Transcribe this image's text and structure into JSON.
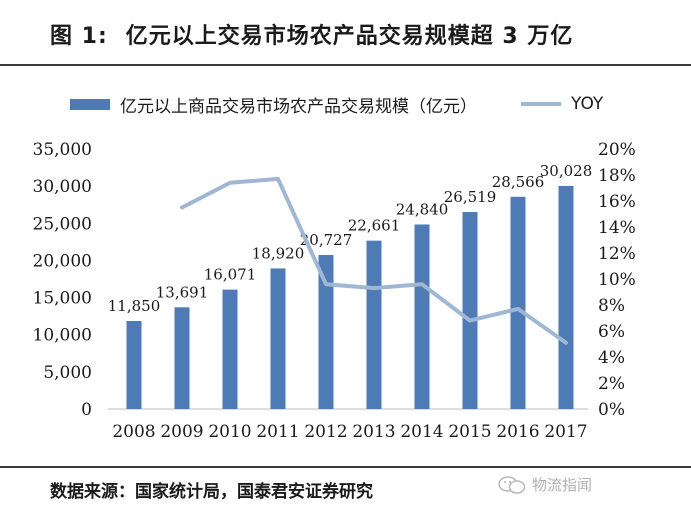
{
  "title": {
    "prefix": "图 1:",
    "text": "亿元以上交易市场农产品交易规模超 3 万亿"
  },
  "source": "数据来源：国家统计局，国泰君安证券研究",
  "watermark": "物流指闻",
  "chart_data": {
    "type": "bar",
    "categories": [
      "2008",
      "2009",
      "2010",
      "2011",
      "2012",
      "2013",
      "2014",
      "2015",
      "2016",
      "2017"
    ],
    "series": [
      {
        "name": "亿元以上商品交易市场农产品交易规模（亿元）",
        "type": "bar",
        "axis": "left",
        "color": "#4e7ab5",
        "values": [
          11850,
          13691,
          16071,
          18920,
          20727,
          22661,
          24840,
          26519,
          28566,
          30028
        ],
        "labels": [
          "11,850",
          "13,691",
          "16,071",
          "18,920",
          "20,727",
          "22,661",
          "24,840",
          "26,519",
          "28,566",
          "30,028"
        ]
      },
      {
        "name": "YOY",
        "type": "line",
        "axis": "right",
        "color": "#9fb7d4",
        "values": [
          null,
          15.5,
          17.4,
          17.7,
          9.6,
          9.3,
          9.6,
          6.8,
          7.7,
          5.1
        ]
      }
    ],
    "left_axis": {
      "ylim": [
        0,
        35000
      ],
      "ticks": [
        0,
        5000,
        10000,
        15000,
        20000,
        25000,
        30000,
        35000
      ],
      "tick_labels": [
        "0",
        "5,000",
        "10,000",
        "15,000",
        "20,000",
        "25,000",
        "30,000",
        "35,000"
      ]
    },
    "right_axis": {
      "ylim": [
        0,
        20
      ],
      "ticks": [
        0,
        2,
        4,
        6,
        8,
        10,
        12,
        14,
        16,
        18,
        20
      ],
      "tick_labels": [
        "0%",
        "2%",
        "4%",
        "6%",
        "8%",
        "10%",
        "12%",
        "14%",
        "16%",
        "18%",
        "20%"
      ]
    },
    "grid": false,
    "legend": "top"
  }
}
